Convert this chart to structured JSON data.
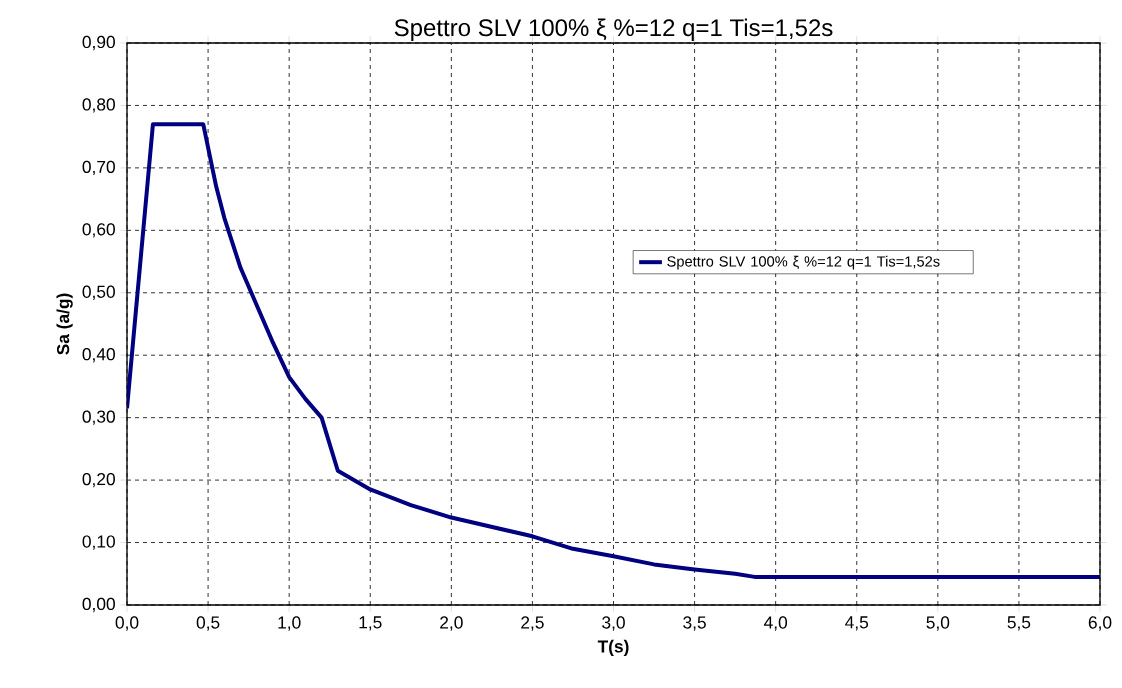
{
  "chart_data": {
    "type": "line",
    "title": "Spettro SLV 100% ξ %=12 q=1 Tis=1,52s",
    "xlabel": "T(s)",
    "ylabel": "Sa (a/g)",
    "series": [
      {
        "name": "Spettro SLV 100% ξ %=12 q=1 Tis=1,52s",
        "color": "#000080",
        "x": [
          0,
          0.16,
          0.47,
          0.55,
          0.6,
          0.7,
          0.8,
          0.9,
          1.0,
          1.1,
          1.2,
          1.3,
          1.5,
          1.75,
          2.0,
          2.25,
          2.5,
          2.75,
          3.0,
          3.25,
          3.5,
          3.75,
          3.87,
          6.0
        ],
        "values": [
          0.315,
          0.77,
          0.77,
          0.67,
          0.62,
          0.54,
          0.48,
          0.42,
          0.365,
          0.33,
          0.3,
          0.215,
          0.185,
          0.16,
          0.14,
          0.125,
          0.11,
          0.09,
          0.078,
          0.065,
          0.057,
          0.05,
          0.045,
          0.045
        ]
      }
    ],
    "xlim": [
      0,
      6
    ],
    "ylim": [
      0,
      0.9
    ],
    "xticks": [
      {
        "value": 0,
        "label": "0,0"
      },
      {
        "value": 0.5,
        "label": "0,5"
      },
      {
        "value": 1,
        "label": "1,0"
      },
      {
        "value": 1.5,
        "label": "1,5"
      },
      {
        "value": 2,
        "label": "2,0"
      },
      {
        "value": 2.5,
        "label": "2,5"
      },
      {
        "value": 3,
        "label": "3,0"
      },
      {
        "value": 3.5,
        "label": "3,5"
      },
      {
        "value": 4,
        "label": "4,0"
      },
      {
        "value": 4.5,
        "label": "4,5"
      },
      {
        "value": 5,
        "label": "5,0"
      },
      {
        "value": 5.5,
        "label": "5,5"
      },
      {
        "value": 6,
        "label": "6,0"
      }
    ],
    "yticks": [
      {
        "value": 0,
        "label": "0,00"
      },
      {
        "value": 0.1,
        "label": "0,10"
      },
      {
        "value": 0.2,
        "label": "0,20"
      },
      {
        "value": 0.3,
        "label": "0,30"
      },
      {
        "value": 0.4,
        "label": "0,40"
      },
      {
        "value": 0.5,
        "label": "0,50"
      },
      {
        "value": 0.6,
        "label": "0,60"
      },
      {
        "value": 0.7,
        "label": "0,70"
      },
      {
        "value": 0.8,
        "label": "0,80"
      },
      {
        "value": 0.9,
        "label": "0,90"
      }
    ],
    "grid": true,
    "legend": "right",
    "marker": "none",
    "line_style": "solid"
  }
}
